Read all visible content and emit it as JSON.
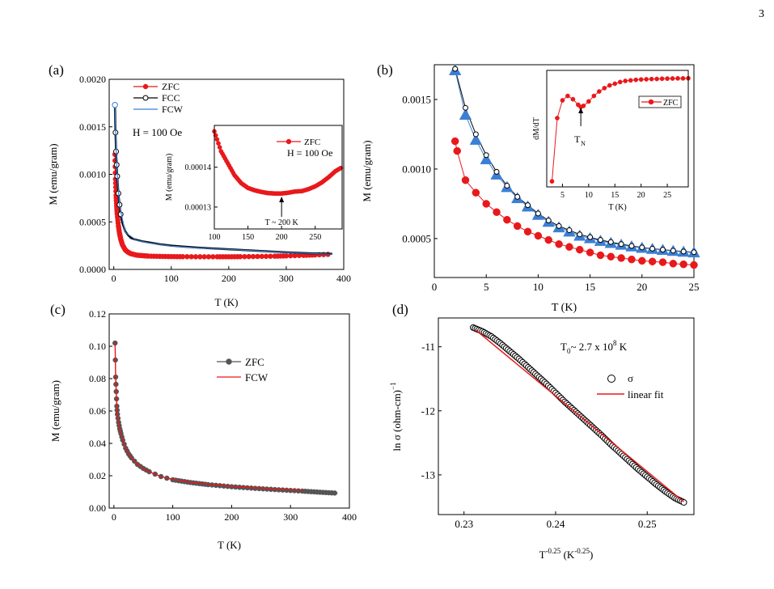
{
  "page": {
    "number": "3"
  },
  "chart_data": [
    {
      "panel_label": "(a)",
      "type": "line",
      "xlabel": "T (K)",
      "ylabel": "M (emu/gram)",
      "xlim": [
        -8,
        400
      ],
      "ylim": [
        0,
        0.002
      ],
      "xticks": [
        0,
        100,
        200,
        300,
        400
      ],
      "yticks": [
        0.0,
        0.0005,
        0.001,
        0.0015,
        0.002
      ],
      "ytick_labels": [
        "0.0000",
        "0.0005",
        "0.0010",
        "0.0015",
        "0.0020"
      ],
      "legend_location": "upper-left",
      "annotation": "H = 100 Oe",
      "series": [
        {
          "name": "ZFC",
          "color": "#e8191b",
          "marker": "filled-circle",
          "x": [
            2,
            3,
            4,
            5,
            6,
            8,
            10,
            12,
            15,
            20,
            25,
            30,
            40,
            50,
            60,
            80,
            100,
            120,
            150,
            180,
            200,
            220,
            250,
            280,
            300,
            330,
            350,
            380
          ],
          "y": [
            0.00121,
            0.00095,
            0.00078,
            0.00067,
            0.00058,
            0.00046,
            0.00038,
            0.00032,
            0.00026,
            0.000205,
            0.00018,
            0.000165,
            0.00015,
            0.000145,
            0.00014,
            0.000137,
            0.000135,
            0.000134,
            0.000133,
            0.000133,
            0.000133,
            0.000134,
            0.000136,
            0.000139,
            0.000142,
            0.000148,
            0.000152,
            0.00016
          ]
        },
        {
          "name": "FCC",
          "color": "#000000",
          "marker": "open-circle",
          "x": [
            2,
            3,
            4,
            5,
            6,
            8,
            10,
            12,
            15,
            20,
            25,
            30,
            40,
            50,
            60,
            80,
            100,
            120,
            150,
            180,
            200,
            220,
            250,
            280,
            300,
            330,
            350,
            380
          ],
          "y": [
            0.00173,
            0.00144,
            0.00124,
            0.0011,
            0.00098,
            0.0008,
            0.00068,
            0.00058,
            0.00049,
            0.0004,
            0.00036,
            0.00033,
            0.00031,
            0.000295,
            0.000285,
            0.000265,
            0.00025,
            0.00024,
            0.000228,
            0.000218,
            0.000212,
            0.000205,
            0.000196,
            0.000186,
            0.00018,
            0.000172,
            0.000168,
            0.000163
          ]
        },
        {
          "name": "FCW",
          "color": "#3b7fd4",
          "marker": "none",
          "x": [
            2,
            5,
            10,
            20,
            40,
            60,
            100,
            150,
            200,
            250,
            300,
            350,
            380
          ],
          "y": [
            0.00172,
            0.00109,
            0.00067,
            0.00039,
            0.000305,
            0.00028,
            0.000245,
            0.000225,
            0.00021,
            0.000195,
            0.000178,
            0.000166,
            0.00016
          ]
        }
      ],
      "inset": {
        "xlim": [
          100,
          290
        ],
        "ylim": [
          0.0001245,
          0.0001505
        ],
        "xticks": [
          100,
          150,
          200,
          250
        ],
        "yticks": [
          0.00013,
          0.00014
        ],
        "ytick_labels": [
          "0.00013",
          "0.00014"
        ],
        "ylabel": "M (emu/gram)",
        "legend": "ZFC",
        "field_label": "H = 100 Oe",
        "arrow_label": "T ~ 200 K",
        "arrow_x": 200,
        "x": [
          100,
          110,
          120,
          130,
          140,
          150,
          160,
          170,
          180,
          190,
          200,
          210,
          220,
          230,
          240,
          250,
          260,
          270,
          280,
          290
        ],
        "y": [
          0.000149,
          0.000144,
          0.000141,
          0.000138,
          0.000136,
          0.0001348,
          0.0001342,
          0.0001338,
          0.0001335,
          0.0001334,
          0.0001334,
          0.0001336,
          0.0001339,
          0.000134,
          0.0001345,
          0.0001352,
          0.0001362,
          0.0001375,
          0.000139,
          0.00014
        ]
      }
    },
    {
      "panel_label": "(b)",
      "type": "scatter",
      "xlabel": "T (K)",
      "ylabel": "M (emu/gram)",
      "xlim": [
        0,
        25
      ],
      "ylim": [
        0.00022,
        0.00175
      ],
      "xticks": [
        0,
        5,
        10,
        15,
        20,
        25
      ],
      "yticks": [
        0.0005,
        0.001,
        0.0015
      ],
      "ytick_labels": [
        "0.0005",
        "0.0010",
        "0.0015"
      ],
      "series": [
        {
          "name": "ZFC",
          "color": "#e8191b",
          "marker": "filled-circle",
          "x": [
            2,
            2.2,
            3,
            4,
            5,
            6,
            7,
            8,
            9,
            10,
            11,
            12,
            13,
            14,
            15,
            16,
            17,
            18,
            19,
            20,
            21,
            22,
            23,
            24,
            25
          ],
          "y": [
            0.0012,
            0.00113,
            0.00092,
            0.00083,
            0.00075,
            0.00069,
            0.000635,
            0.00059,
            0.00055,
            0.00052,
            0.00049,
            0.00046,
            0.00044,
            0.00042,
            0.0004,
            0.00038,
            0.00037,
            0.00036,
            0.00035,
            0.00034,
            0.000335,
            0.00033,
            0.00032,
            0.000315,
            0.00031
          ]
        },
        {
          "name": "FCC",
          "color": "#000000",
          "marker": "open-circle",
          "x": [
            2,
            3,
            4,
            5,
            6,
            7,
            8,
            9,
            10,
            11,
            12,
            13,
            14,
            15,
            16,
            17,
            18,
            19,
            20,
            21,
            22,
            23,
            24,
            25
          ],
          "y": [
            0.00172,
            0.00144,
            0.00125,
            0.0011,
            0.00098,
            0.00088,
            0.0008,
            0.00074,
            0.00068,
            0.00063,
            0.00059,
            0.00056,
            0.00053,
            0.00051,
            0.00049,
            0.000475,
            0.00046,
            0.000447,
            0.000436,
            0.000427,
            0.00042,
            0.000413,
            0.000407,
            0.000402
          ]
        },
        {
          "name": "FCW",
          "color": "#3b7fd4",
          "marker": "filled-triangle",
          "x": [
            2,
            3,
            4,
            5,
            6,
            7,
            8,
            9,
            10,
            11,
            12,
            13,
            14,
            15,
            16,
            17,
            18,
            19,
            20,
            21,
            22,
            23,
            24,
            25
          ],
          "y": [
            0.00171,
            0.00139,
            0.00121,
            0.00107,
            0.00096,
            0.00087,
            0.00079,
            0.00073,
            0.00067,
            0.00062,
            0.00058,
            0.00055,
            0.00052,
            0.000502,
            0.000483,
            0.000468,
            0.000455,
            0.000443,
            0.000433,
            0.000425,
            0.000418,
            0.000411,
            0.000405,
            0.0004
          ]
        }
      ],
      "inset": {
        "ylabel": "dM/dT",
        "legend": "ZFC",
        "xlim": [
          2,
          29
        ],
        "xticks": [
          5,
          10,
          15,
          20,
          25
        ],
        "arrow_label": "T",
        "arrow_label_sub": "N",
        "arrow_x": 8.5,
        "x": [
          3,
          4,
          5,
          6,
          7,
          8,
          8.5,
          9,
          10,
          11,
          12,
          13,
          14,
          15,
          16,
          17,
          18,
          19,
          20,
          21,
          22,
          23,
          24,
          25,
          26,
          27,
          28,
          29
        ],
        "y": [
          0.05,
          0.62,
          0.78,
          0.82,
          0.79,
          0.74,
          0.72,
          0.73,
          0.77,
          0.82,
          0.86,
          0.89,
          0.915,
          0.93,
          0.945,
          0.955,
          0.96,
          0.965,
          0.968,
          0.97,
          0.972,
          0.973,
          0.975,
          0.976,
          0.977,
          0.978,
          0.978,
          0.979
        ]
      }
    },
    {
      "panel_label": "(c)",
      "type": "line",
      "xlabel": "T (K)",
      "ylabel": "M (emu/gram)",
      "xlim": [
        -8,
        400
      ],
      "ylim": [
        0,
        0.12
      ],
      "xticks": [
        0,
        100,
        200,
        300,
        400
      ],
      "yticks": [
        0.0,
        0.02,
        0.04,
        0.06,
        0.08,
        0.1,
        0.12
      ],
      "ytick_labels": [
        "0.00",
        "0.02",
        "0.04",
        "0.06",
        "0.08",
        "0.10",
        "0.12"
      ],
      "legend_location": "upper-right",
      "series": [
        {
          "name": "ZFC",
          "color": "#555555",
          "marker": "filled-circle",
          "x": [
            2,
            3,
            4,
            5,
            6,
            8,
            10,
            12,
            15,
            20,
            25,
            30,
            40,
            50,
            60,
            80,
            100,
            130,
            160,
            200,
            240,
            280,
            320,
            350,
            380
          ],
          "y": [
            0.102,
            0.081,
            0.072,
            0.063,
            0.058,
            0.053,
            0.049,
            0.046,
            0.042,
            0.037,
            0.0335,
            0.031,
            0.027,
            0.0245,
            0.0225,
            0.0195,
            0.0175,
            0.0158,
            0.0145,
            0.0132,
            0.0122,
            0.0113,
            0.0105,
            0.0098,
            0.0092
          ]
        },
        {
          "name": "FCW",
          "color": "#e8191b",
          "marker": "none",
          "x": [
            2,
            3,
            4,
            5,
            6,
            8,
            10,
            12,
            15,
            20,
            25,
            30,
            40,
            50,
            60,
            80,
            100,
            130,
            160,
            200,
            240,
            280,
            320
          ],
          "y": [
            0.102,
            0.081,
            0.072,
            0.063,
            0.058,
            0.053,
            0.049,
            0.046,
            0.042,
            0.037,
            0.0335,
            0.031,
            0.027,
            0.0245,
            0.0225,
            0.0195,
            0.0178,
            0.016,
            0.0148,
            0.0135,
            0.0125,
            0.0117,
            0.0111
          ]
        }
      ]
    },
    {
      "panel_label": "(d)",
      "type": "scatter",
      "xlabel_main": "T",
      "xlabel_sup": "-0.25",
      "xlabel_unit": " (K",
      "xlabel_unit_sup": "-0.25",
      "xlabel_close": ")",
      "ylabel_main": "ln σ (ohm-cm)",
      "ylabel_sup": "−1",
      "xlim": [
        0.2272,
        0.2551
      ],
      "ylim": [
        -13.62,
        -10.55
      ],
      "xticks": [
        0.23,
        0.24,
        0.25
      ],
      "yticks": [
        -11,
        -12,
        -13
      ],
      "annotation_main": "T",
      "annotation_sub": "0",
      "annotation_mid": "~ 2.7 x 10",
      "annotation_sup": "8",
      "annotation_end": " K",
      "series": [
        {
          "name": "σ",
          "color": "#000000",
          "marker": "open-circle",
          "x": [
            0.231,
            0.232,
            0.233,
            0.234,
            0.235,
            0.236,
            0.237,
            0.238,
            0.239,
            0.24,
            0.241,
            0.242,
            0.243,
            0.244,
            0.245,
            0.246,
            0.247,
            0.248,
            0.249,
            0.25,
            0.251,
            0.252,
            0.253,
            0.254
          ],
          "y": [
            -10.7,
            -10.76,
            -10.84,
            -10.95,
            -11.07,
            -11.19,
            -11.32,
            -11.45,
            -11.58,
            -11.72,
            -11.86,
            -11.99,
            -12.12,
            -12.25,
            -12.38,
            -12.52,
            -12.65,
            -12.78,
            -12.91,
            -13.03,
            -13.15,
            -13.26,
            -13.36,
            -13.43
          ]
        },
        {
          "name": "linear fit",
          "color": "#e8191b",
          "marker": "none",
          "x": [
            0.2312,
            0.254
          ],
          "y": [
            -10.73,
            -13.42
          ]
        }
      ]
    }
  ]
}
